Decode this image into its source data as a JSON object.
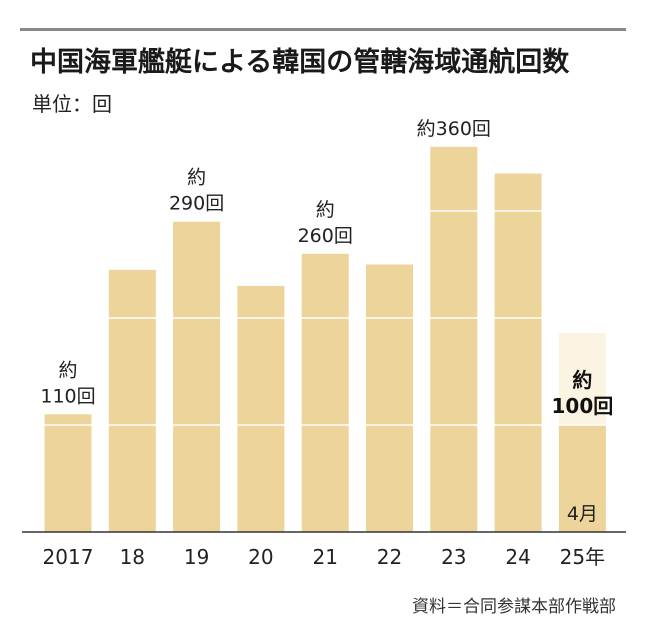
{
  "title": "中国海軍艦艇による韓国の管轄海域通航回数",
  "unit_label": "単位：回",
  "source": "資料＝合同参謀本部作戦部",
  "chart_data": {
    "type": "bar",
    "categories": [
      "2017",
      "18",
      "19",
      "20",
      "21",
      "22",
      "23",
      "24",
      "25年"
    ],
    "values": [
      110,
      245,
      290,
      230,
      260,
      250,
      360,
      335,
      100
    ],
    "ylim": [
      0,
      360
    ],
    "grid": "horizontal lines at 100, 200, 300",
    "data_labels": [
      {
        "index": 0,
        "lines": [
          "約",
          "110回"
        ],
        "bold": false
      },
      {
        "index": 2,
        "lines": [
          "約",
          "290回"
        ],
        "bold": false
      },
      {
        "index": 4,
        "lines": [
          "約",
          "260回"
        ],
        "bold": false
      },
      {
        "index": 6,
        "lines": [
          "約360回"
        ],
        "bold": false
      },
      {
        "index": 8,
        "lines": [
          "約",
          "100回"
        ],
        "bold": true
      }
    ],
    "bar_note": {
      "index": 8,
      "text": "4月"
    },
    "colors": {
      "bar": "#EDD49A",
      "bar_highlight_bg": "#FCF4E2",
      "axis": "#333333",
      "grid_line": "#ffffff"
    }
  }
}
